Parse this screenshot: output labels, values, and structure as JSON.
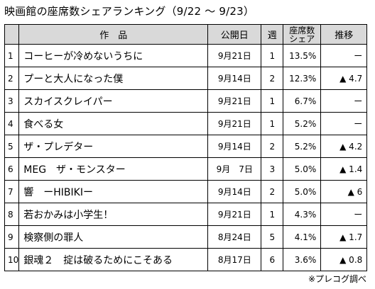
{
  "title": "映画館の座席数シェアランキング（9/22 ～ 9/23）",
  "headers": {
    "title_col": "作　品",
    "release": "公開日",
    "weeks": "週",
    "share_line1": "座席数",
    "share_line2": "シェア",
    "trend": "推移"
  },
  "rows": [
    {
      "rank": "1",
      "title": "コーヒーが冷めないうちに",
      "release": "9月21日",
      "weeks": "1",
      "share": "13.5%",
      "trend": "ー"
    },
    {
      "rank": "2",
      "title": "プーと大人になった僕",
      "release": "9月14日",
      "weeks": "2",
      "share": "12.3%",
      "trend": "▲ 4.7"
    },
    {
      "rank": "3",
      "title": "スカイスクレイパー",
      "release": "9月21日",
      "weeks": "1",
      "share": "6.7%",
      "trend": "ー"
    },
    {
      "rank": "4",
      "title": "食べる女",
      "release": "9月21日",
      "weeks": "1",
      "share": "5.2%",
      "trend": "ー"
    },
    {
      "rank": "5",
      "title": "ザ・プレデター",
      "release": "9月14日",
      "weeks": "2",
      "share": "5.2%",
      "trend": "▲ 4.2"
    },
    {
      "rank": "6",
      "title": "MEG　ザ・モンスター",
      "release": "9月　7日",
      "weeks": "3",
      "share": "5.0%",
      "trend": "▲ 1.4"
    },
    {
      "rank": "7",
      "title": "響　ーHIBIKIー",
      "release": "9月14日",
      "weeks": "2",
      "share": "5.0%",
      "trend": "▲ 6"
    },
    {
      "rank": "8",
      "title": "若おかみは小学生！",
      "release": "9月21日",
      "weeks": "1",
      "share": "4.3%",
      "trend": "ー"
    },
    {
      "rank": "9",
      "title": "検察側の罪人",
      "release": "8月24日",
      "weeks": "5",
      "share": "4.1%",
      "trend": "▲ 1.7"
    },
    {
      "rank": "10",
      "title": "銀魂２　掟は破るためにこそある",
      "release": "8月17日",
      "weeks": "6",
      "share": "3.6%",
      "trend": "▲ 0.8"
    }
  ],
  "source_note": "※プレコグ調べ"
}
